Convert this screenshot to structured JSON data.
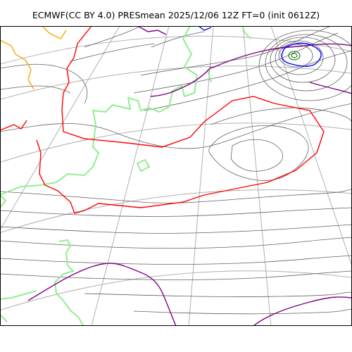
{
  "figure": {
    "title": "ECMWF(CC BY 4.0) PRESmean 2025/12/06 12Z FT=0 (init 0612Z)"
  },
  "map": {
    "projection": "polar-stereographic",
    "background": "#ffffff",
    "colors": {
      "frame": "#000000",
      "graticule": "#b0b0b0",
      "isobar": "#606060",
      "coastline": "#90ee90",
      "contour_red": "#ff0000",
      "contour_purple": "#800080",
      "contour_blue": "#0000ff",
      "contour_orange": "#ffa500",
      "low_center": "#006400"
    },
    "features": [
      "isobars",
      "graticule",
      "coastline",
      "low-pressure-center-northeast"
    ]
  }
}
